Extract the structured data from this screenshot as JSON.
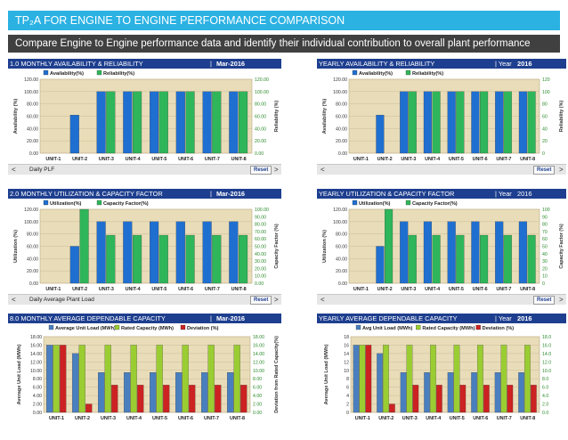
{
  "header": {
    "title": "TP₂A FOR ENGINE TO ENGINE PERFORMANCE COMPARISON",
    "subtitle": "Compare Engine to Engine performance data and identify their individual contribution to overall plant performance"
  },
  "colors": {
    "title_bar": "#2bb2e3",
    "subtitle_bar": "#404040",
    "panel_header": "#1e3f8f",
    "availability": "#1f6fd1",
    "reliability": "#2fb55a",
    "avg_load": "#4a7fbf",
    "rated_capacity": "#9acd32",
    "deviation": "#cc2222",
    "plot_bg": "#e9dcb8"
  },
  "panels": [
    {
      "id": "p0",
      "title": "1.0 MONTHLY AVAILABILITY & RELIABILITY",
      "period_prefix": "| ",
      "period": "Mar-2016",
      "footer_label": "Daily PLF",
      "reset": "Reset",
      "prev": "<",
      "next": ">"
    },
    {
      "id": "p1",
      "title": "YEARLY AVAILABILITY & RELIABILITY",
      "period_prefix": "| Year ",
      "period": "2016",
      "footer_label": "",
      "reset": "Reset",
      "prev": "<",
      "next": ">"
    },
    {
      "id": "p2",
      "title": "2.0 MONTHLY UTILIZATION & CAPACITY FACTOR",
      "period_prefix": "| ",
      "period": "Mar-2016",
      "footer_label": "Daily Average Plant Load",
      "reset": "Reset",
      "prev": "<",
      "next": ">"
    },
    {
      "id": "p3",
      "title": "YEARLY UTILIZATION & CAPACITY FACTOR",
      "period_prefix": "| Year ",
      "period": "2016",
      "footer_label": "",
      "reset": "Reset",
      "prev": "<",
      "next": ">"
    },
    {
      "id": "p4",
      "title": "8.0 MONTHLY AVERAGE DEPENDABLE CAPACITY",
      "period_prefix": "| ",
      "period": "Mar-2016",
      "footer_label": "",
      "reset": "",
      "prev": "",
      "next": ""
    },
    {
      "id": "p5",
      "title": "YEARLY AVERAGE DEPENDABLE CAPACITY",
      "period_prefix": "| Year ",
      "period": "2016",
      "footer_label": "",
      "reset": "",
      "prev": "",
      "next": ""
    }
  ],
  "chart_data": [
    {
      "type": "bar",
      "title": "1.0 MONTHLY AVAILABILITY & RELIABILITY",
      "categories": [
        "UNIT-1",
        "UNIT-2",
        "UNIT-3",
        "UNIT-4",
        "UNIT-5",
        "UNIT-6",
        "UNIT-7",
        "UNIT-8"
      ],
      "series": [
        {
          "name": "Availability(%)",
          "axis": "left",
          "values": [
            0,
            62,
            100,
            100,
            100,
            100,
            100,
            100
          ]
        },
        {
          "name": "Reliability(%)",
          "axis": "right",
          "values": [
            0,
            0,
            100,
            100,
            100,
            100,
            100,
            100
          ]
        }
      ],
      "ylabel": "Availability (%)",
      "ylabel_right": "Reliability (%)",
      "yticks_left": [
        "0.00",
        "20.00",
        "40.00",
        "60.00",
        "80.00",
        "100.00",
        "120.00"
      ],
      "yticks_right": [
        "0.00",
        "20.00",
        "40.00",
        "60.00",
        "80.00",
        "100.00",
        "120.00"
      ],
      "ylim": [
        0,
        120
      ],
      "ylim_right": [
        0,
        120
      ],
      "legend": "top-left",
      "grid": true
    },
    {
      "type": "bar",
      "title": "YEARLY AVAILABILITY & RELIABILITY",
      "categories": [
        "UNIT-1",
        "UNIT-2",
        "UNIT-3",
        "UNIT-4",
        "UNIT-5",
        "UNIT-6",
        "UNIT-7",
        "UNIT-8"
      ],
      "series": [
        {
          "name": "Availability(%)",
          "axis": "left",
          "values": [
            0,
            62,
            100,
            100,
            100,
            100,
            100,
            100
          ]
        },
        {
          "name": "Reliability(%)",
          "axis": "right",
          "values": [
            0,
            0,
            100,
            100,
            100,
            100,
            100,
            100
          ]
        }
      ],
      "ylabel": "Availability (%)",
      "ylabel_right": "Reliability (%)",
      "yticks_left": [
        "0.00",
        "20.00",
        "40.00",
        "60.00",
        "80.00",
        "100.00",
        "120.00"
      ],
      "yticks_right": [
        "0",
        "20",
        "40",
        "60",
        "80",
        "100",
        "120"
      ],
      "ylim": [
        0,
        120
      ],
      "ylim_right": [
        0,
        120
      ],
      "legend": "top-left",
      "grid": true
    },
    {
      "type": "bar",
      "title": "2.0 MONTHLY UTILIZATION & CAPACITY FACTOR",
      "categories": [
        "UNIT-1",
        "UNIT-2",
        "UNIT-3",
        "UNIT-4",
        "UNIT-5",
        "UNIT-6",
        "UNIT-7",
        "UNIT-8"
      ],
      "series": [
        {
          "name": "Utilization(%)",
          "axis": "left",
          "values": [
            0,
            60,
            100,
            100,
            100,
            100,
            100,
            100
          ]
        },
        {
          "name": "Capacity Factor(%)",
          "axis": "right",
          "values": [
            0,
            100,
            65,
            65,
            65,
            65,
            65,
            65
          ]
        }
      ],
      "ylabel": "Utilization (%)",
      "ylabel_right": "Capacity Factor (%)",
      "yticks_left": [
        "0.00",
        "20.00",
        "40.00",
        "60.00",
        "80.00",
        "100.00",
        "120.00"
      ],
      "yticks_right": [
        "0.00",
        "10.00",
        "20.00",
        "30.00",
        "40.00",
        "50.00",
        "60.00",
        "70.00",
        "80.00",
        "90.00",
        "100.00"
      ],
      "ylim": [
        0,
        120
      ],
      "ylim_right": [
        0,
        100
      ],
      "legend": "top-left",
      "grid": true
    },
    {
      "type": "bar",
      "title": "YEARLY UTILIZATION & CAPACITY FACTOR",
      "categories": [
        "UNIT-1",
        "UNIT-2",
        "UNIT-3",
        "UNIT-4",
        "UNIT-5",
        "UNIT-6",
        "UNIT-7",
        "UNIT-8"
      ],
      "series": [
        {
          "name": "Utilization(%)",
          "axis": "left",
          "values": [
            0,
            60,
            100,
            100,
            100,
            100,
            100,
            100
          ]
        },
        {
          "name": "Capacity Factor(%)",
          "axis": "right",
          "values": [
            0,
            100,
            65,
            65,
            65,
            65,
            65,
            65
          ]
        }
      ],
      "ylabel": "Utilization (%)",
      "ylabel_right": "Capacity Factor (%)",
      "yticks_left": [
        "0.00",
        "20.00",
        "40.00",
        "60.00",
        "80.00",
        "100.00",
        "120.00"
      ],
      "yticks_right": [
        "0",
        "10",
        "20",
        "30",
        "40",
        "50",
        "60",
        "70",
        "80",
        "90",
        "100"
      ],
      "ylim": [
        0,
        120
      ],
      "ylim_right": [
        0,
        100
      ],
      "legend": "top-left",
      "grid": true
    },
    {
      "type": "bar",
      "title": "8.0 MONTHLY AVERAGE DEPENDABLE CAPACITY",
      "categories": [
        "UNIT-1",
        "UNIT-2",
        "UNIT-3",
        "UNIT-4",
        "UNIT-5",
        "UNIT-6",
        "UNIT-7",
        "UNIT-8"
      ],
      "series": [
        {
          "name": "Average Unit Load (MWh)",
          "axis": "left",
          "values": [
            16,
            14,
            9.5,
            9.5,
            9.5,
            9.5,
            9.5,
            9.5
          ]
        },
        {
          "name": "Rated Capacity (MWh)",
          "axis": "left",
          "values": [
            16,
            16,
            16,
            16,
            16,
            16,
            16,
            16
          ]
        },
        {
          "name": "Deviation (%)",
          "axis": "right",
          "values": [
            16,
            2,
            6.5,
            6.5,
            6.5,
            6.5,
            6.5,
            6.5
          ]
        }
      ],
      "ylabel": "Average Unit Load (MWh)",
      "ylabel_right": "Deviation from Rated Capacity(%)",
      "yticks_left": [
        "0.00",
        "2.00",
        "4.00",
        "6.00",
        "8.00",
        "10.00",
        "12.00",
        "14.00",
        "16.00",
        "18.00"
      ],
      "yticks_right": [
        "0.00",
        "2.00",
        "4.00",
        "6.00",
        "8.00",
        "10.00",
        "12.00",
        "14.00",
        "16.00",
        "18.00"
      ],
      "ylim": [
        0,
        18
      ],
      "ylim_right": [
        0,
        18
      ],
      "legend": "top",
      "grid": true
    },
    {
      "type": "bar",
      "title": "YEARLY AVERAGE DEPENDABLE CAPACITY",
      "categories": [
        "UNIT-1",
        "UNIT-2",
        "UNIT-3",
        "UNIT-4",
        "UNIT-5",
        "UNIT-6",
        "UNIT-7",
        "UNIT-8"
      ],
      "series": [
        {
          "name": "Avg Unit Load (MWh)",
          "axis": "left",
          "values": [
            16,
            14,
            9.5,
            9.5,
            9.5,
            9.5,
            9.5,
            9.5
          ]
        },
        {
          "name": "Rated Capacity (MWh)",
          "axis": "left",
          "values": [
            16,
            16,
            16,
            16,
            16,
            16,
            16,
            16
          ]
        },
        {
          "name": "Deviation (%)",
          "axis": "right",
          "values": [
            16,
            2,
            6.5,
            6.5,
            6.5,
            6.5,
            6.5,
            6.5
          ]
        }
      ],
      "ylabel": "Average Unit Load (MWh)",
      "ylabel_right": "",
      "yticks_left": [
        "0",
        "2",
        "4",
        "6",
        "8",
        "10",
        "12",
        "14",
        "16",
        "18"
      ],
      "yticks_right": [
        "0.0",
        "2.0",
        "4.0",
        "6.0",
        "8.0",
        "10.0",
        "12.0",
        "14.0",
        "16.0",
        "18.0"
      ],
      "ylim": [
        0,
        18
      ],
      "ylim_right": [
        0,
        18
      ],
      "legend": "top",
      "grid": true
    }
  ]
}
